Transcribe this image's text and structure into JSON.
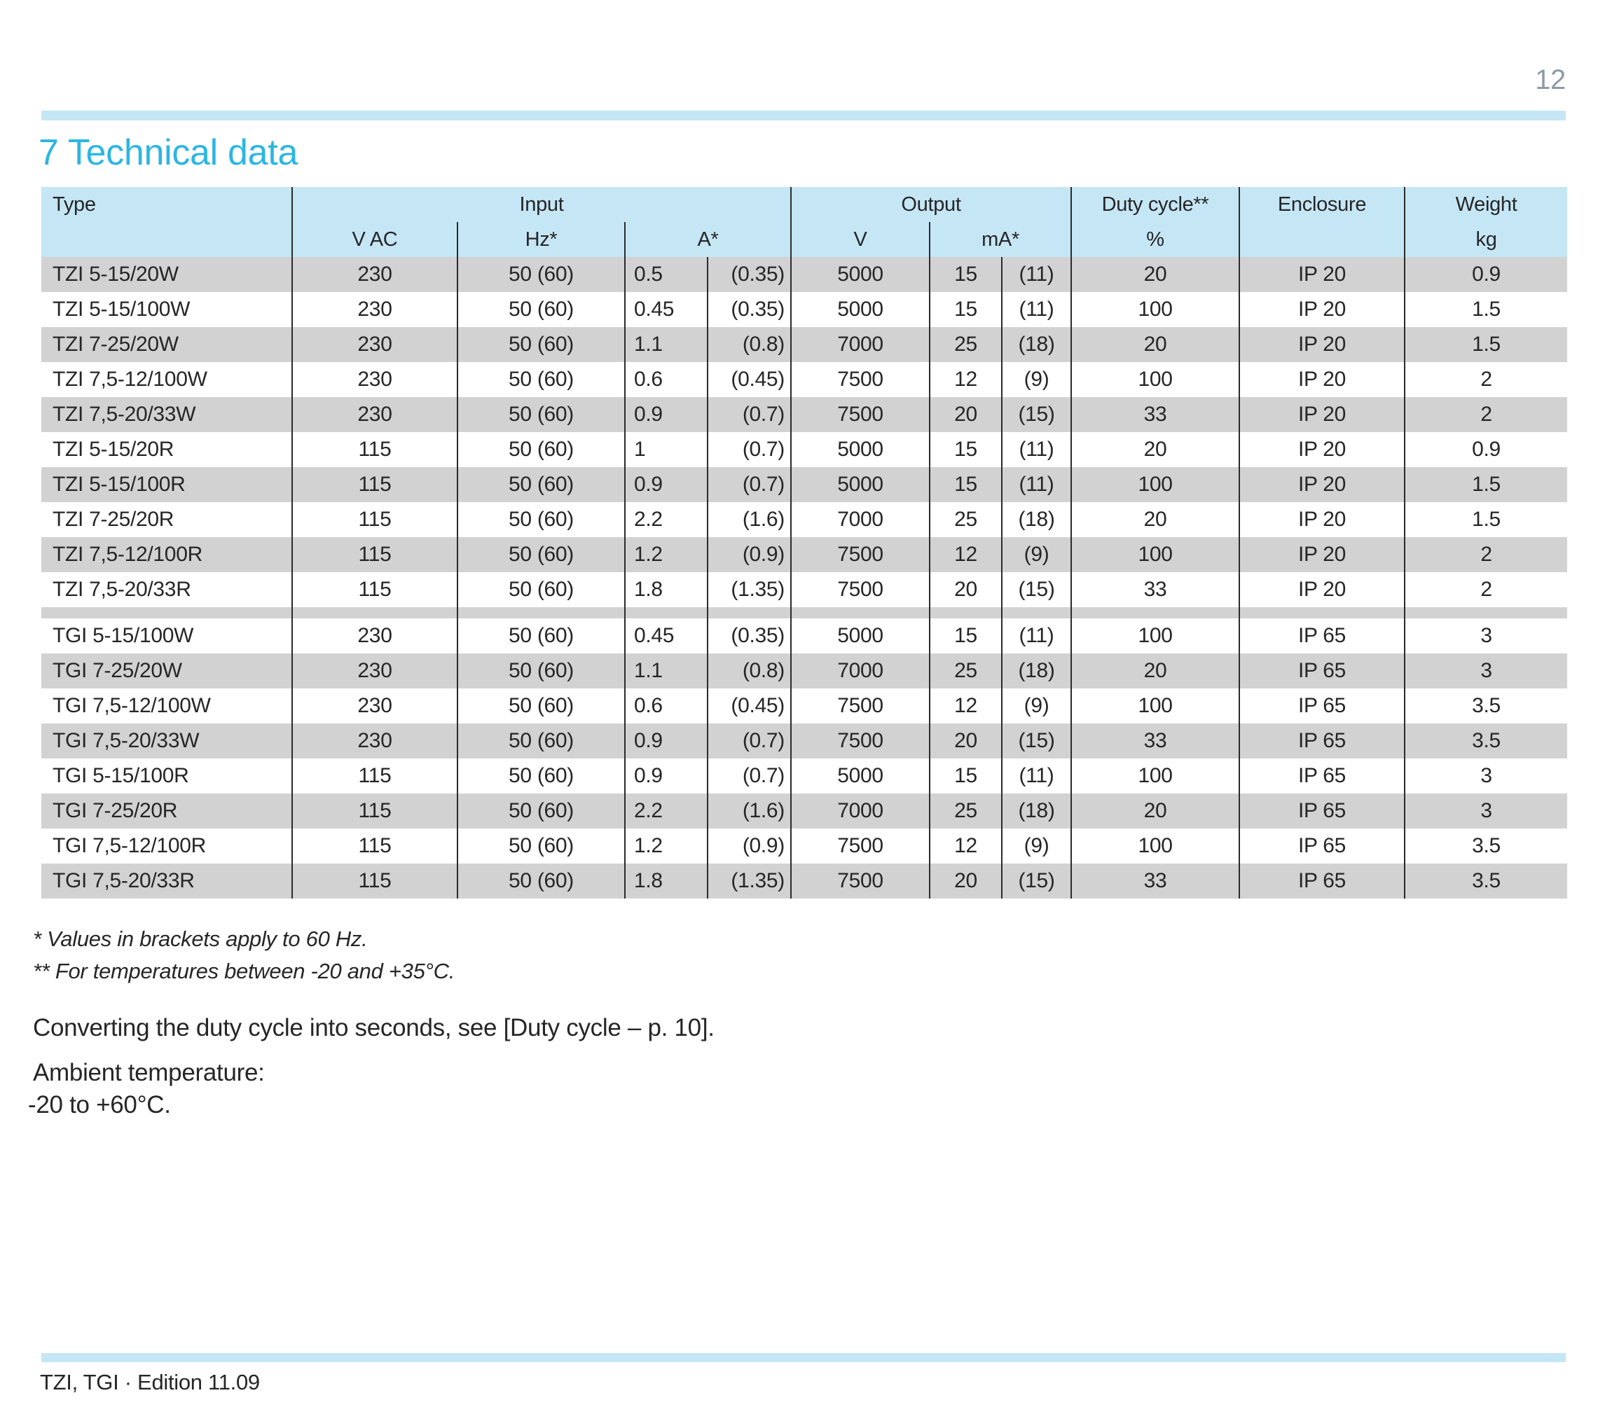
{
  "page": {
    "number": "12",
    "footer_text": "TZI, TGI · Edition 11.09"
  },
  "heading": {
    "title": "7 Technical data"
  },
  "table": {
    "header": {
      "type": "Type",
      "input": "Input",
      "vac": "V AC",
      "hz": "Hz*",
      "a": "A*",
      "output": "Output",
      "v": "V",
      "ma": "mA*",
      "duty": "Duty cycle**",
      "duty_unit": "%",
      "enclosure": "Enclosure",
      "weight": "Weight",
      "weight_unit": "kg"
    },
    "groups": [
      {
        "rows": [
          [
            "TZI 5-15/20W",
            "230",
            "50 (60)",
            "0.5",
            "(0.35)",
            "5000",
            "15",
            "(11)",
            "20",
            "IP 20",
            "0.9"
          ],
          [
            "TZI 5-15/100W",
            "230",
            "50 (60)",
            "0.45",
            "(0.35)",
            "5000",
            "15",
            "(11)",
            "100",
            "IP 20",
            "1.5"
          ],
          [
            "TZI 7-25/20W",
            "230",
            "50 (60)",
            "1.1",
            "(0.8)",
            "7000",
            "25",
            "(18)",
            "20",
            "IP 20",
            "1.5"
          ],
          [
            "TZI 7,5-12/100W",
            "230",
            "50 (60)",
            "0.6",
            "(0.45)",
            "7500",
            "12",
            "(9)",
            "100",
            "IP 20",
            "2"
          ],
          [
            "TZI 7,5-20/33W",
            "230",
            "50 (60)",
            "0.9",
            "(0.7)",
            "7500",
            "20",
            "(15)",
            "33",
            "IP 20",
            "2"
          ],
          [
            "TZI 5-15/20R",
            "115",
            "50 (60)",
            "1",
            "(0.7)",
            "5000",
            "15",
            "(11)",
            "20",
            "IP 20",
            "0.9"
          ],
          [
            "TZI 5-15/100R",
            "115",
            "50 (60)",
            "0.9",
            "(0.7)",
            "5000",
            "15",
            "(11)",
            "100",
            "IP 20",
            "1.5"
          ],
          [
            "TZI 7-25/20R",
            "115",
            "50 (60)",
            "2.2",
            "(1.6)",
            "7000",
            "25",
            "(18)",
            "20",
            "IP 20",
            "1.5"
          ],
          [
            "TZI 7,5-12/100R",
            "115",
            "50 (60)",
            "1.2",
            "(0.9)",
            "7500",
            "12",
            "(9)",
            "100",
            "IP 20",
            "2"
          ],
          [
            "TZI 7,5-20/33R",
            "115",
            "50 (60)",
            "1.8",
            "(1.35)",
            "7500",
            "20",
            "(15)",
            "33",
            "IP 20",
            "2"
          ]
        ]
      },
      {
        "rows": [
          [
            "TGI 5-15/100W",
            "230",
            "50 (60)",
            "0.45",
            "(0.35)",
            "5000",
            "15",
            "(11)",
            "100",
            "IP 65",
            "3"
          ],
          [
            "TGI 7-25/20W",
            "230",
            "50 (60)",
            "1.1",
            "(0.8)",
            "7000",
            "25",
            "(18)",
            "20",
            "IP 65",
            "3"
          ],
          [
            "TGI 7,5-12/100W",
            "230",
            "50 (60)",
            "0.6",
            "(0.45)",
            "7500",
            "12",
            "(9)",
            "100",
            "IP 65",
            "3.5"
          ],
          [
            "TGI 7,5-20/33W",
            "230",
            "50 (60)",
            "0.9",
            "(0.7)",
            "7500",
            "20",
            "(15)",
            "33",
            "IP 65",
            "3.5"
          ],
          [
            "TGI 5-15/100R",
            "115",
            "50 (60)",
            "0.9",
            "(0.7)",
            "5000",
            "15",
            "(11)",
            "100",
            "IP 65",
            "3"
          ],
          [
            "TGI 7-25/20R",
            "115",
            "50 (60)",
            "2.2",
            "(1.6)",
            "7000",
            "25",
            "(18)",
            "20",
            "IP 65",
            "3"
          ],
          [
            "TGI 7,5-12/100R",
            "115",
            "50 (60)",
            "1.2",
            "(0.9)",
            "7500",
            "12",
            "(9)",
            "100",
            "IP 65",
            "3.5"
          ],
          [
            "TGI 7,5-20/33R",
            "115",
            "50 (60)",
            "1.8",
            "(1.35)",
            "7500",
            "20",
            "(15)",
            "33",
            "IP 65",
            "3.5"
          ]
        ]
      }
    ]
  },
  "footnotes": {
    "line1": "* Values in brackets apply to 60 Hz.",
    "line2": "** For temperatures between -20 and +35°C."
  },
  "notes": {
    "converting": "Converting the duty cycle into seconds, see [Duty cycle – p. 10].",
    "ambient_label": "Ambient temperature:",
    "ambient_value": "-20 to +60°C."
  },
  "colors": {
    "accent_cyan": "#2cb6e3",
    "band_blue": "#c5e6f5",
    "row_gray": "#d2d2d2",
    "line_black": "#2b2b2b",
    "page_number_gray": "#8f9aa5",
    "text": "#262626"
  }
}
